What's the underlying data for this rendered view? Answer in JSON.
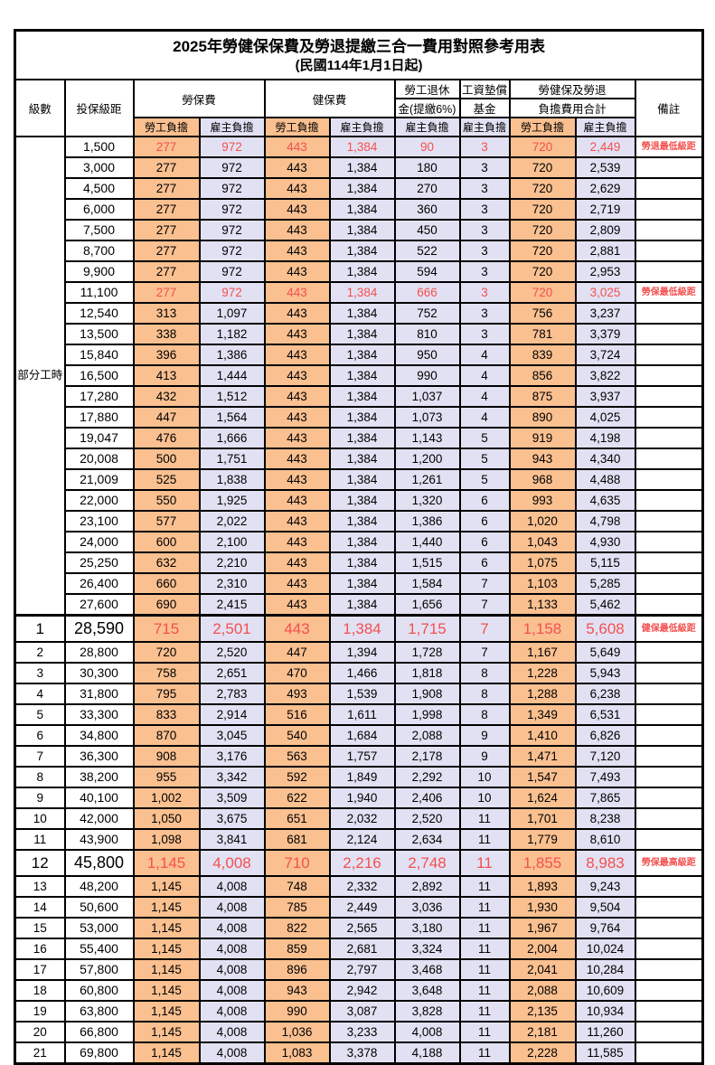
{
  "title": "2025年勞健保保費及勞退提繳三合一費用對照參考用表",
  "subtitle": "(民國114年1月1日起)",
  "headers": {
    "level": "級數",
    "bracket": "投保級距",
    "labor_insurance": "勞保費",
    "health_insurance": "健保費",
    "pension_line1": "勞工退休",
    "pension_line2": "金(提繳6%)",
    "wage_fund_line1": "工資墊償",
    "wage_fund_line2": "基金",
    "total_line1": "勞健保及勞退",
    "total_line2": "負擔費用合計",
    "remark": "備註",
    "employee_share": "勞工負擔",
    "employer_share": "雇主負擔"
  },
  "colors": {
    "employee_bg": "#FAC090",
    "employer_bg": "#E2E1F3",
    "highlight_red": "#F4504F",
    "border": "#000000"
  },
  "sections": [
    {
      "group_label": "部分工時",
      "rows": [
        {
          "bracket": "1,500",
          "values": [
            "277",
            "972",
            "443",
            "1,384",
            "90",
            "3",
            "720",
            "2,449"
          ],
          "remark": "勞退最低級距",
          "red": true,
          "large": false
        },
        {
          "bracket": "3,000",
          "values": [
            "277",
            "972",
            "443",
            "1,384",
            "180",
            "3",
            "720",
            "2,539"
          ],
          "remark": "",
          "red": false,
          "large": false
        },
        {
          "bracket": "4,500",
          "values": [
            "277",
            "972",
            "443",
            "1,384",
            "270",
            "3",
            "720",
            "2,629"
          ],
          "remark": "",
          "red": false,
          "large": false
        },
        {
          "bracket": "6,000",
          "values": [
            "277",
            "972",
            "443",
            "1,384",
            "360",
            "3",
            "720",
            "2,719"
          ],
          "remark": "",
          "red": false,
          "large": false
        },
        {
          "bracket": "7,500",
          "values": [
            "277",
            "972",
            "443",
            "1,384",
            "450",
            "3",
            "720",
            "2,809"
          ],
          "remark": "",
          "red": false,
          "large": false
        },
        {
          "bracket": "8,700",
          "values": [
            "277",
            "972",
            "443",
            "1,384",
            "522",
            "3",
            "720",
            "2,881"
          ],
          "remark": "",
          "red": false,
          "large": false
        },
        {
          "bracket": "9,900",
          "values": [
            "277",
            "972",
            "443",
            "1,384",
            "594",
            "3",
            "720",
            "2,953"
          ],
          "remark": "",
          "red": false,
          "large": false
        },
        {
          "bracket": "11,100",
          "values": [
            "277",
            "972",
            "443",
            "1,384",
            "666",
            "3",
            "720",
            "3,025"
          ],
          "remark": "勞保最低級距",
          "red": true,
          "large": false
        },
        {
          "bracket": "12,540",
          "values": [
            "313",
            "1,097",
            "443",
            "1,384",
            "752",
            "3",
            "756",
            "3,237"
          ],
          "remark": "",
          "red": false,
          "large": false
        },
        {
          "bracket": "13,500",
          "values": [
            "338",
            "1,182",
            "443",
            "1,384",
            "810",
            "3",
            "781",
            "3,379"
          ],
          "remark": "",
          "red": false,
          "large": false
        },
        {
          "bracket": "15,840",
          "values": [
            "396",
            "1,386",
            "443",
            "1,384",
            "950",
            "4",
            "839",
            "3,724"
          ],
          "remark": "",
          "red": false,
          "large": false
        },
        {
          "bracket": "16,500",
          "values": [
            "413",
            "1,444",
            "443",
            "1,384",
            "990",
            "4",
            "856",
            "3,822"
          ],
          "remark": "",
          "red": false,
          "large": false
        },
        {
          "bracket": "17,280",
          "values": [
            "432",
            "1,512",
            "443",
            "1,384",
            "1,037",
            "4",
            "875",
            "3,937"
          ],
          "remark": "",
          "red": false,
          "large": false
        },
        {
          "bracket": "17,880",
          "values": [
            "447",
            "1,564",
            "443",
            "1,384",
            "1,073",
            "4",
            "890",
            "4,025"
          ],
          "remark": "",
          "red": false,
          "large": false
        },
        {
          "bracket": "19,047",
          "values": [
            "476",
            "1,666",
            "443",
            "1,384",
            "1,143",
            "5",
            "919",
            "4,198"
          ],
          "remark": "",
          "red": false,
          "large": false
        },
        {
          "bracket": "20,008",
          "values": [
            "500",
            "1,751",
            "443",
            "1,384",
            "1,200",
            "5",
            "943",
            "4,340"
          ],
          "remark": "",
          "red": false,
          "large": false
        },
        {
          "bracket": "21,009",
          "values": [
            "525",
            "1,838",
            "443",
            "1,384",
            "1,261",
            "5",
            "968",
            "4,488"
          ],
          "remark": "",
          "red": false,
          "large": false
        },
        {
          "bracket": "22,000",
          "values": [
            "550",
            "1,925",
            "443",
            "1,384",
            "1,320",
            "6",
            "993",
            "4,635"
          ],
          "remark": "",
          "red": false,
          "large": false
        },
        {
          "bracket": "23,100",
          "values": [
            "577",
            "2,022",
            "443",
            "1,384",
            "1,386",
            "6",
            "1,020",
            "4,798"
          ],
          "remark": "",
          "red": false,
          "large": false
        },
        {
          "bracket": "24,000",
          "values": [
            "600",
            "2,100",
            "443",
            "1,384",
            "1,440",
            "6",
            "1,043",
            "4,930"
          ],
          "remark": "",
          "red": false,
          "large": false
        },
        {
          "bracket": "25,250",
          "values": [
            "632",
            "2,210",
            "443",
            "1,384",
            "1,515",
            "6",
            "1,075",
            "5,115"
          ],
          "remark": "",
          "red": false,
          "large": false
        },
        {
          "bracket": "26,400",
          "values": [
            "660",
            "2,310",
            "443",
            "1,384",
            "1,584",
            "7",
            "1,103",
            "5,285"
          ],
          "remark": "",
          "red": false,
          "large": false
        },
        {
          "bracket": "27,600",
          "values": [
            "690",
            "2,415",
            "443",
            "1,384",
            "1,656",
            "7",
            "1,133",
            "5,462"
          ],
          "remark": "",
          "red": false,
          "large": false
        }
      ]
    },
    {
      "group_label": "",
      "rows": [
        {
          "level": "1",
          "bracket": "28,590",
          "values": [
            "715",
            "2,501",
            "443",
            "1,384",
            "1,715",
            "7",
            "1,158",
            "5,608"
          ],
          "remark": "健保最低級距",
          "red": true,
          "large": true
        },
        {
          "level": "2",
          "bracket": "28,800",
          "values": [
            "720",
            "2,520",
            "447",
            "1,394",
            "1,728",
            "7",
            "1,167",
            "5,649"
          ],
          "remark": "",
          "red": false,
          "large": false
        },
        {
          "level": "3",
          "bracket": "30,300",
          "values": [
            "758",
            "2,651",
            "470",
            "1,466",
            "1,818",
            "8",
            "1,228",
            "5,943"
          ],
          "remark": "",
          "red": false,
          "large": false
        },
        {
          "level": "4",
          "bracket": "31,800",
          "values": [
            "795",
            "2,783",
            "493",
            "1,539",
            "1,908",
            "8",
            "1,288",
            "6,238"
          ],
          "remark": "",
          "red": false,
          "large": false
        },
        {
          "level": "5",
          "bracket": "33,300",
          "values": [
            "833",
            "2,914",
            "516",
            "1,611",
            "1,998",
            "8",
            "1,349",
            "6,531"
          ],
          "remark": "",
          "red": false,
          "large": false
        },
        {
          "level": "6",
          "bracket": "34,800",
          "values": [
            "870",
            "3,045",
            "540",
            "1,684",
            "2,088",
            "9",
            "1,410",
            "6,826"
          ],
          "remark": "",
          "red": false,
          "large": false
        },
        {
          "level": "7",
          "bracket": "36,300",
          "values": [
            "908",
            "3,176",
            "563",
            "1,757",
            "2,178",
            "9",
            "1,471",
            "7,120"
          ],
          "remark": "",
          "red": false,
          "large": false
        },
        {
          "level": "8",
          "bracket": "38,200",
          "values": [
            "955",
            "3,342",
            "592",
            "1,849",
            "2,292",
            "10",
            "1,547",
            "7,493"
          ],
          "remark": "",
          "red": false,
          "large": false
        },
        {
          "level": "9",
          "bracket": "40,100",
          "values": [
            "1,002",
            "3,509",
            "622",
            "1,940",
            "2,406",
            "10",
            "1,624",
            "7,865"
          ],
          "remark": "",
          "red": false,
          "large": false
        },
        {
          "level": "10",
          "bracket": "42,000",
          "values": [
            "1,050",
            "3,675",
            "651",
            "2,032",
            "2,520",
            "11",
            "1,701",
            "8,238"
          ],
          "remark": "",
          "red": false,
          "large": false
        },
        {
          "level": "11",
          "bracket": "43,900",
          "values": [
            "1,098",
            "3,841",
            "681",
            "2,124",
            "2,634",
            "11",
            "1,779",
            "8,610"
          ],
          "remark": "",
          "red": false,
          "large": false
        },
        {
          "level": "12",
          "bracket": "45,800",
          "values": [
            "1,145",
            "4,008",
            "710",
            "2,216",
            "2,748",
            "11",
            "1,855",
            "8,983"
          ],
          "remark": "勞保最高級距",
          "red": true,
          "large": true
        },
        {
          "level": "13",
          "bracket": "48,200",
          "values": [
            "1,145",
            "4,008",
            "748",
            "2,332",
            "2,892",
            "11",
            "1,893",
            "9,243"
          ],
          "remark": "",
          "red": false,
          "large": false
        },
        {
          "level": "14",
          "bracket": "50,600",
          "values": [
            "1,145",
            "4,008",
            "785",
            "2,449",
            "3,036",
            "11",
            "1,930",
            "9,504"
          ],
          "remark": "",
          "red": false,
          "large": false
        },
        {
          "level": "15",
          "bracket": "53,000",
          "values": [
            "1,145",
            "4,008",
            "822",
            "2,565",
            "3,180",
            "11",
            "1,967",
            "9,764"
          ],
          "remark": "",
          "red": false,
          "large": false
        },
        {
          "level": "16",
          "bracket": "55,400",
          "values": [
            "1,145",
            "4,008",
            "859",
            "2,681",
            "3,324",
            "11",
            "2,004",
            "10,024"
          ],
          "remark": "",
          "red": false,
          "large": false
        },
        {
          "level": "17",
          "bracket": "57,800",
          "values": [
            "1,145",
            "4,008",
            "896",
            "2,797",
            "3,468",
            "11",
            "2,041",
            "10,284"
          ],
          "remark": "",
          "red": false,
          "large": false
        },
        {
          "level": "18",
          "bracket": "60,800",
          "values": [
            "1,145",
            "4,008",
            "943",
            "2,942",
            "3,648",
            "11",
            "2,088",
            "10,609"
          ],
          "remark": "",
          "red": false,
          "large": false
        },
        {
          "level": "19",
          "bracket": "63,800",
          "values": [
            "1,145",
            "4,008",
            "990",
            "3,087",
            "3,828",
            "11",
            "2,135",
            "10,934"
          ],
          "remark": "",
          "red": false,
          "large": false
        },
        {
          "level": "20",
          "bracket": "66,800",
          "values": [
            "1,145",
            "4,008",
            "1,036",
            "3,233",
            "4,008",
            "11",
            "2,181",
            "11,260"
          ],
          "remark": "",
          "red": false,
          "large": false
        },
        {
          "level": "21",
          "bracket": "69,800",
          "values": [
            "1,145",
            "4,008",
            "1,083",
            "3,378",
            "4,188",
            "11",
            "2,228",
            "11,585"
          ],
          "remark": "",
          "red": false,
          "large": false
        }
      ]
    }
  ]
}
